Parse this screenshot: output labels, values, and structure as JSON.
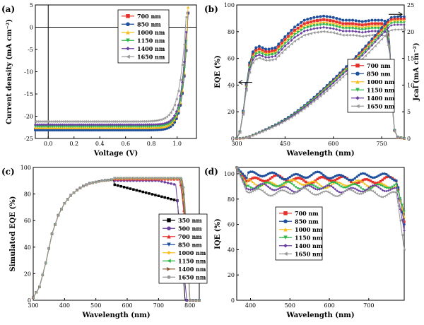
{
  "chart_data": [
    {
      "panel": "(a)",
      "type": "line",
      "xlabel": "Voltage (V)",
      "ylabel": "Current density (mA cm⁻²)",
      "xlim": [
        -0.1,
        1.15
      ],
      "ylim": [
        -25,
        5
      ],
      "xticks": [
        "0.0",
        "0.2",
        "0.4",
        "0.6",
        "0.8",
        "1.0"
      ],
      "xtick_values": [
        0,
        0.2,
        0.4,
        0.6,
        0.8,
        1.0
      ],
      "yticks": [
        "5",
        "0",
        "-5",
        "-10",
        "-15",
        "-20",
        "-25"
      ],
      "ytick_values": [
        5,
        0,
        -5,
        -10,
        -15,
        -20,
        -25
      ],
      "legend_position": "top-right",
      "series": [
        {
          "name": "700 nm",
          "color": "#e8302a",
          "marker": "square",
          "jsc": -22.9,
          "voc": 1.08,
          "n": 1.5
        },
        {
          "name": "850 nm",
          "color": "#1e4f9c",
          "marker": "circle",
          "jsc": -23.1,
          "voc": 1.08,
          "n": 1.5
        },
        {
          "name": "1000 nm",
          "color": "#f6c020",
          "marker": "triangle-up",
          "jsc": -22.6,
          "voc": 1.078,
          "n": 1.5
        },
        {
          "name": "1150 nm",
          "color": "#2fb84a",
          "marker": "triangle-down",
          "jsc": -22.3,
          "voc": 1.076,
          "n": 1.5
        },
        {
          "name": "1400 nm",
          "color": "#6a3fa0",
          "marker": "diamond",
          "jsc": -21.9,
          "voc": 1.072,
          "n": 1.5
        },
        {
          "name": "1650 nm",
          "color": "#9a9a9a",
          "marker": "triangle-left",
          "jsc": -21.2,
          "voc": 1.065,
          "n": 1.9
        }
      ]
    },
    {
      "panel": "(b)",
      "type": "line",
      "xlabel": "Wavelength (nm)",
      "ylabel": "EQE (%)",
      "ylabel_right": "Jcal (mA cm⁻²)",
      "xlim": [
        300,
        820
      ],
      "ylim": [
        0,
        100
      ],
      "ylim_right": [
        0,
        25
      ],
      "xticks": [
        "300",
        "450",
        "600",
        "750"
      ],
      "xtick_values": [
        300,
        450,
        600,
        750
      ],
      "yticks": [
        "0",
        "20",
        "40",
        "60",
        "80",
        "100"
      ],
      "ytick_values": [
        0,
        20,
        40,
        60,
        80,
        100
      ],
      "yticks_right": [
        "0",
        "5",
        "10",
        "15",
        "20",
        "25"
      ],
      "ytick_values_right": [
        0,
        5,
        10,
        15,
        20,
        25
      ],
      "legend_position": "center-right",
      "eqe_wavelength_nm": [
        300,
        310,
        320,
        330,
        340,
        350,
        360,
        370,
        380,
        390,
        400,
        420,
        450,
        480,
        510,
        540,
        570,
        600,
        630,
        660,
        690,
        720,
        750,
        765,
        775,
        780,
        785,
        790,
        800,
        820
      ],
      "eqe_base_percent": [
        0,
        5,
        20,
        40,
        55,
        63,
        66,
        67,
        66,
        65,
        65,
        66,
        74,
        81,
        86,
        88,
        89,
        88,
        86,
        86,
        85,
        86,
        86,
        85,
        70,
        45,
        20,
        6,
        1,
        0
      ],
      "series": [
        {
          "name": "700 nm",
          "color": "#e8302a",
          "marker": "square",
          "eqe_scale": 1.0,
          "jcal_end": 22.4
        },
        {
          "name": "850 nm",
          "color": "#1e4f9c",
          "marker": "circle",
          "eqe_scale": 1.03,
          "jcal_end": 22.8
        },
        {
          "name": "1000 nm",
          "color": "#f6c020",
          "marker": "triangle-up",
          "eqe_scale": 0.98,
          "jcal_end": 22.1
        },
        {
          "name": "1150 nm",
          "color": "#2fb84a",
          "marker": "triangle-down",
          "eqe_scale": 0.96,
          "jcal_end": 21.7
        },
        {
          "name": "1400 nm",
          "color": "#6a3fa0",
          "marker": "diamond",
          "eqe_scale": 0.935,
          "jcal_end": 21.3
        },
        {
          "name": "1650 nm",
          "color": "#9a9a9a",
          "marker": "triangle-left",
          "eqe_scale": 0.9,
          "jcal_end": 20.4
        }
      ]
    },
    {
      "panel": "(c)",
      "type": "line",
      "xlabel": "Wavelength (nm)",
      "ylabel": "Simulated EQE (%)",
      "xlim": [
        300,
        830
      ],
      "ylim": [
        0,
        100
      ],
      "xticks": [
        "300",
        "400",
        "500",
        "600",
        "700",
        "800"
      ],
      "xtick_values": [
        300,
        400,
        500,
        600,
        700,
        800
      ],
      "yticks": [
        "0",
        "20",
        "40",
        "60",
        "80",
        "100"
      ],
      "ytick_values": [
        0,
        20,
        40,
        60,
        80,
        100
      ],
      "legend_position": "center-right",
      "wavelength_nm": [
        300,
        320,
        340,
        360,
        380,
        400,
        420,
        440,
        460,
        480,
        500,
        520,
        540,
        560
      ],
      "rise_percent": [
        2,
        10,
        28,
        50,
        64,
        73,
        79,
        83,
        86,
        88,
        89,
        90,
        90.5,
        91
      ],
      "series": [
        {
          "name": "350 nm",
          "color": "#000000",
          "marker": "square",
          "plateau": 87,
          "cut_start": 560,
          "cut_end": 785,
          "dip": "drop"
        },
        {
          "name": "500 nm",
          "color": "#6a3fa0",
          "marker": "circle",
          "plateau": 90,
          "cut_start": 700,
          "cut_end": 790,
          "dip": "shoulder"
        },
        {
          "name": "700 nm",
          "color": "#e8302a",
          "marker": "triangle-up",
          "plateau": 91,
          "cut_start": 765,
          "cut_end": 800,
          "dip": "none"
        },
        {
          "name": "850 nm",
          "color": "#1e4f9c",
          "marker": "triangle-down",
          "plateau": 91.5,
          "cut_start": 768,
          "cut_end": 800,
          "dip": "none"
        },
        {
          "name": "1000 nm",
          "color": "#f6c020",
          "marker": "diamond",
          "plateau": 91.5,
          "cut_start": 770,
          "cut_end": 800,
          "dip": "none"
        },
        {
          "name": "1150 nm",
          "color": "#2fb84a",
          "marker": "triangle-left",
          "plateau": 92,
          "cut_start": 772,
          "cut_end": 800,
          "dip": "none"
        },
        {
          "name": "1400 nm",
          "color": "#8a5a3a",
          "marker": "triangle-right",
          "plateau": 92,
          "cut_start": 772,
          "cut_end": 800,
          "dip": "none"
        },
        {
          "name": "1650 nm",
          "color": "#9a9a9a",
          "marker": "hexagon",
          "plateau": 92,
          "cut_start": 775,
          "cut_end": 800,
          "dip": "none"
        }
      ]
    },
    {
      "panel": "(d)",
      "type": "line",
      "xlabel": "Wavelength (nm)",
      "ylabel": "IQE (%)",
      "xlim": [
        365,
        790
      ],
      "ylim": [
        0,
        105
      ],
      "xticks": [
        "400",
        "500",
        "600",
        "700"
      ],
      "xtick_values": [
        400,
        500,
        600,
        700
      ],
      "yticks": [
        "0",
        "20",
        "40",
        "60",
        "80",
        "100"
      ],
      "ytick_values": [
        0,
        20,
        40,
        60,
        80,
        100
      ],
      "legend_position": "center",
      "series": [
        {
          "name": "700 nm",
          "color": "#e8302a",
          "marker": "square",
          "level": 96,
          "end_drop": 62
        },
        {
          "name": "850 nm",
          "color": "#1e4f9c",
          "marker": "circle",
          "level": 99,
          "end_drop": 60
        },
        {
          "name": "1000 nm",
          "color": "#f6c020",
          "marker": "triangle-up",
          "level": 93,
          "end_drop": 66
        },
        {
          "name": "1150 nm",
          "color": "#2fb84a",
          "marker": "triangle-down",
          "level": 91,
          "end_drop": 70
        },
        {
          "name": "1400 nm",
          "color": "#6a3fa0",
          "marker": "diamond",
          "level": 89,
          "end_drop": 55
        },
        {
          "name": "1650 nm",
          "color": "#9a9a9a",
          "marker": "triangle-left",
          "level": 86,
          "end_drop": 40
        }
      ]
    }
  ]
}
